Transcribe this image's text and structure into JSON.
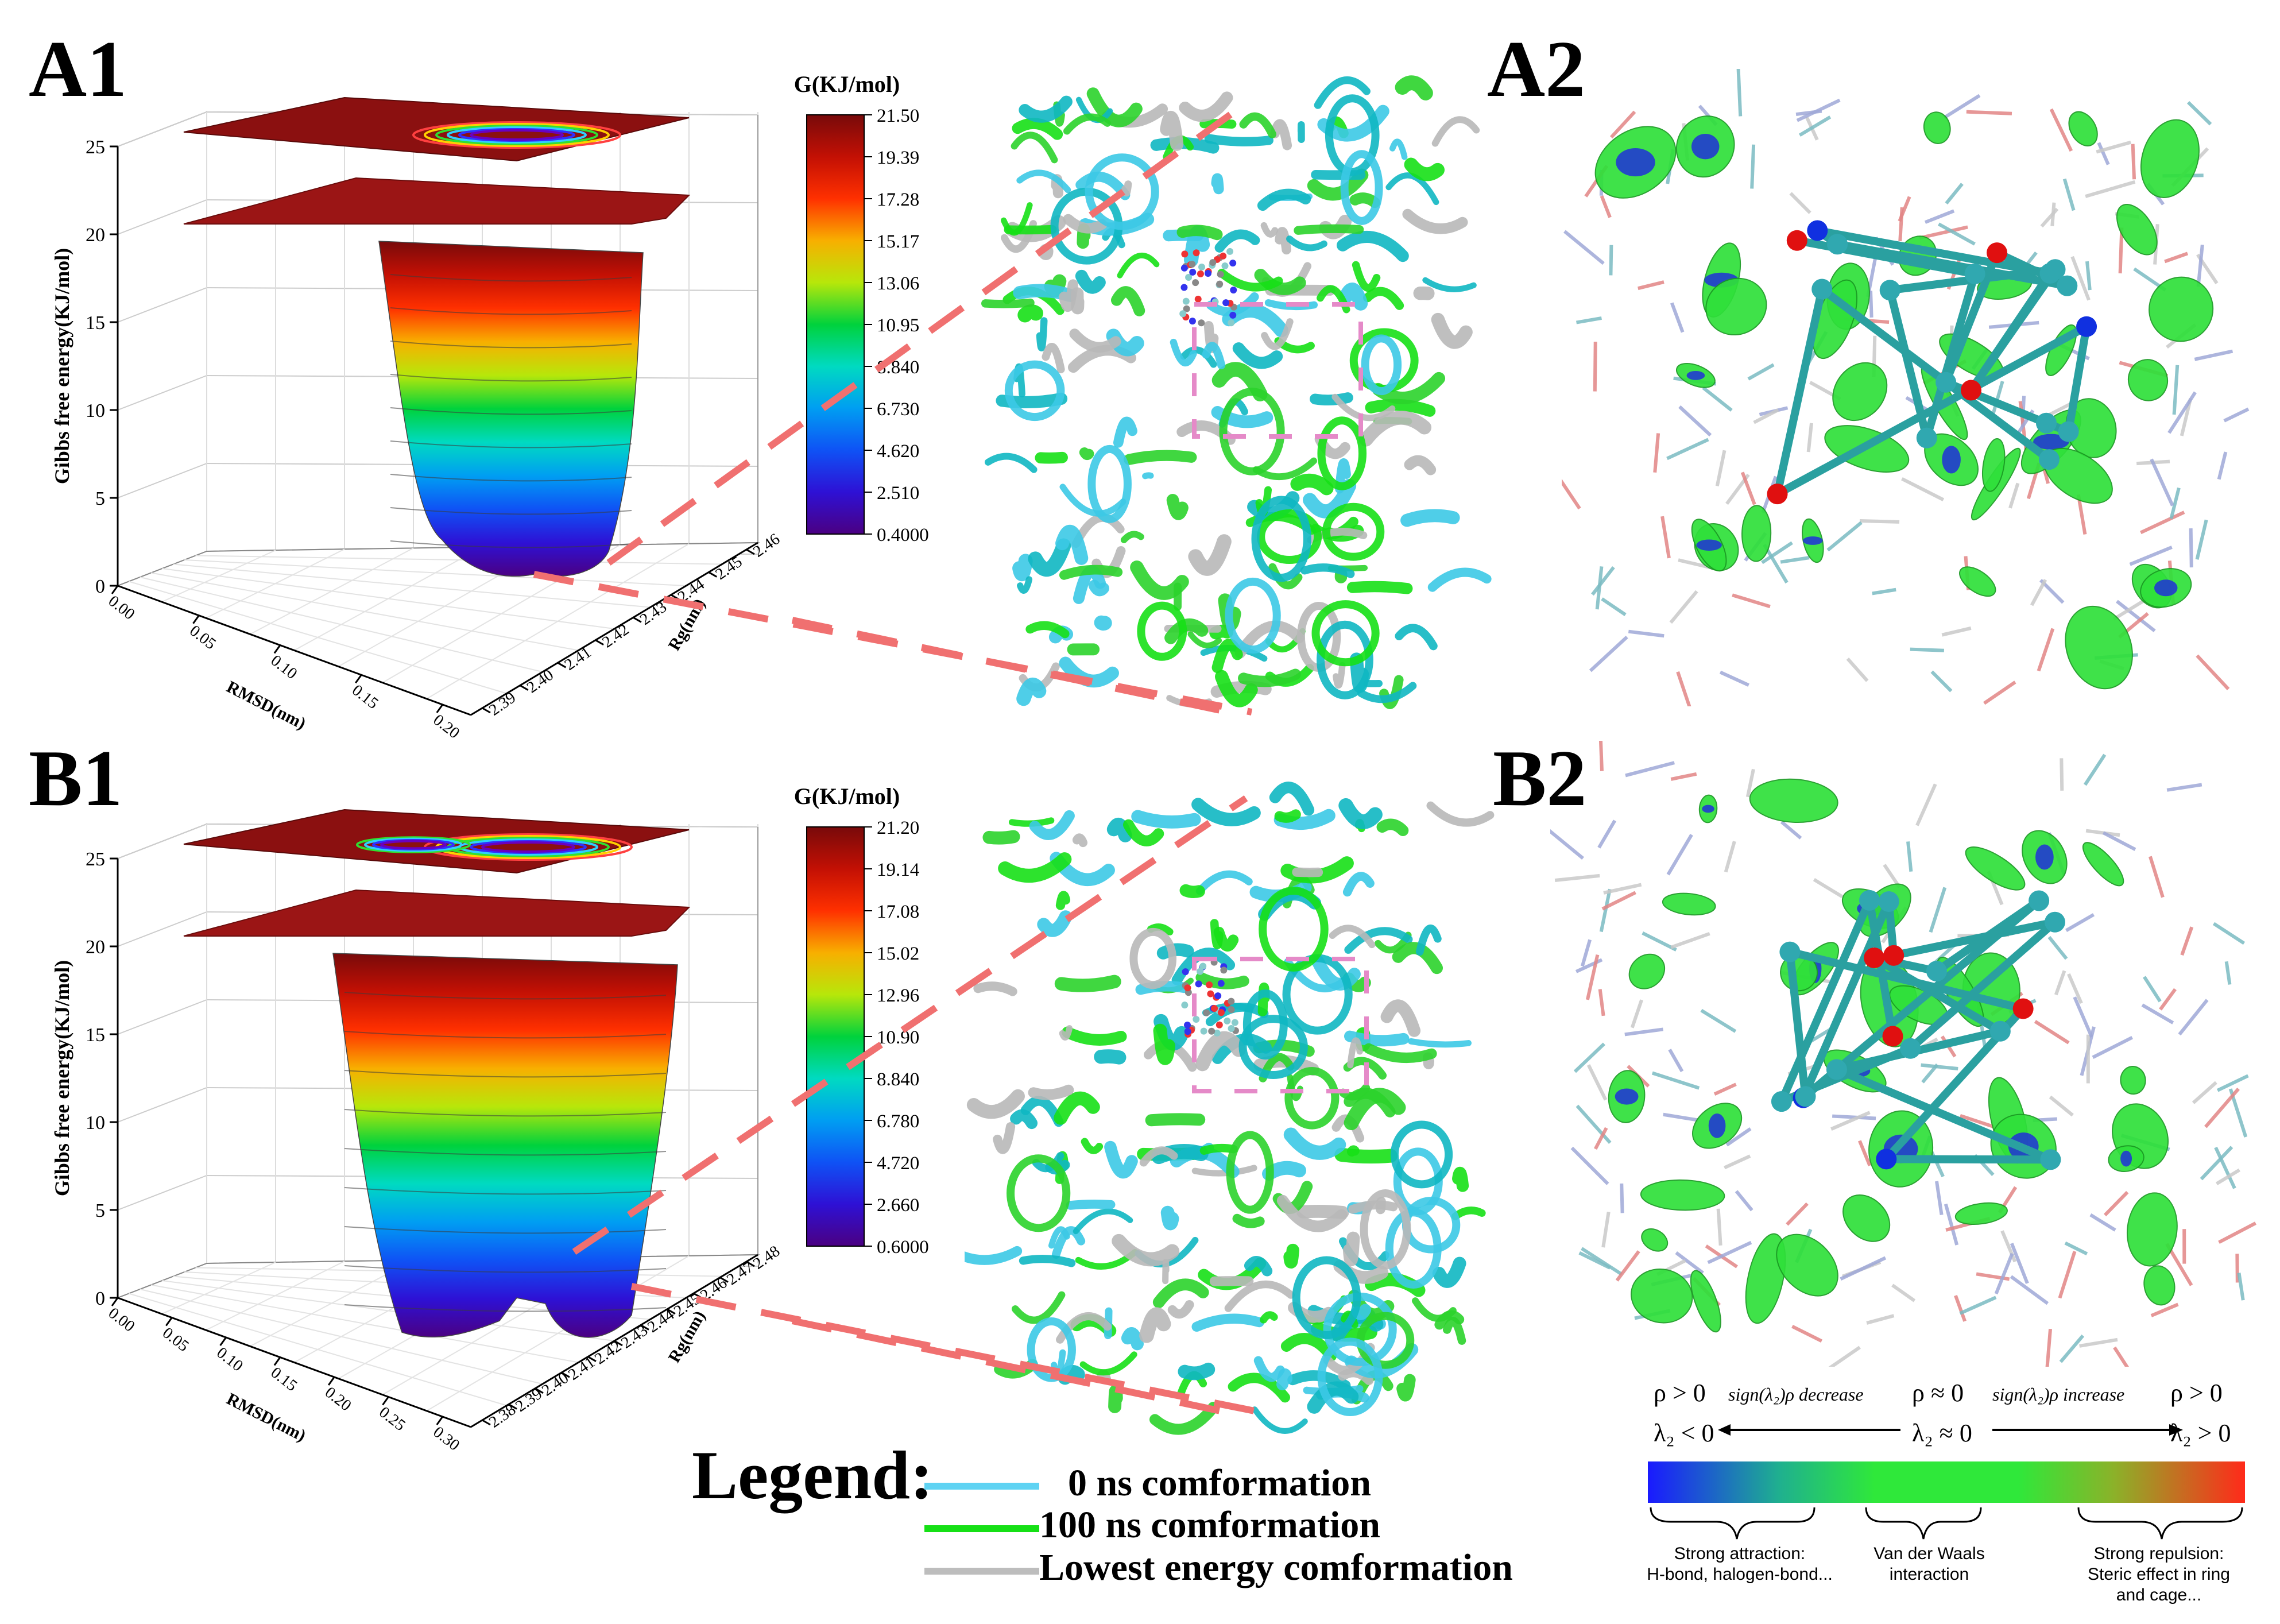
{
  "panels": {
    "a1": "A1",
    "a2": "A2",
    "b1": "B1",
    "b2": "B2"
  },
  "colors": {
    "conf_0ns": "#5fd3f3",
    "conf_100ns": "#16e016",
    "conf_lowest": "#bdbdbd",
    "zoom_line": "#f07070",
    "zoom_box": "#e58ac8"
  },
  "chart_data": [
    {
      "type": "surface",
      "panel": "A1",
      "zlabel": "Gibbs free energy(KJ/mol)",
      "xlabel": "RMSD(nm)",
      "ylabel": "Rg(nm)",
      "zlim": [
        0,
        25
      ],
      "z_ticks": [
        "0",
        "5",
        "10",
        "15",
        "20",
        "25"
      ],
      "x_ticks": [
        "0.00",
        "0.05",
        "0.10",
        "0.15",
        "0.20"
      ],
      "y_ticks": [
        "2.39",
        "2.40",
        "2.41",
        "2.42",
        "2.43",
        "2.44",
        "2.45",
        "2.46"
      ],
      "colorbar_title": "G(KJ/mol)",
      "colorbar_ticks": [
        "21.50",
        "19.39",
        "17.28",
        "15.17",
        "13.06",
        "10.95",
        "8.840",
        "6.730",
        "4.620",
        "2.510",
        "0.4000"
      ],
      "minima": 1
    },
    {
      "type": "surface",
      "panel": "B1",
      "zlabel": "Gibbs free energy(KJ/mol)",
      "xlabel": "RMSD(nm)",
      "ylabel": "Rg(nm)",
      "zlim": [
        0,
        25
      ],
      "z_ticks": [
        "0",
        "5",
        "10",
        "15",
        "20",
        "25"
      ],
      "x_ticks": [
        "0.00",
        "0.05",
        "0.10",
        "0.15",
        "0.20",
        "0.25",
        "0.30"
      ],
      "y_ticks": [
        "2.38",
        "2.39",
        "2.40",
        "2.41",
        "2.42",
        "2.43",
        "2.44",
        "2.45",
        "2.46",
        "2.47",
        "2.48"
      ],
      "colorbar_title": "G(KJ/mol)",
      "colorbar_ticks": [
        "21.20",
        "19.14",
        "17.08",
        "15.02",
        "12.96",
        "10.90",
        "8.840",
        "6.780",
        "4.720",
        "2.660",
        "0.6000"
      ],
      "minima": 2
    }
  ],
  "legend": {
    "title": "Legend:",
    "items": [
      "0 ns comformation",
      "100 ns comformation",
      "Lowest energy comformation"
    ]
  },
  "nci": {
    "left_top": "ρ > 0",
    "left_bottom": "λ₂ < 0",
    "mid_top": "ρ ≈ 0",
    "mid_bottom": "λ₂ ≈ 0",
    "right_top": "ρ > 0",
    "right_bottom": "λ₂ > 0",
    "decrease": "sign(λ₂)ρ decrease",
    "increase": "sign(λ₂)ρ increase",
    "cap_left": "Strong attraction:\nH-bond, halogen-bond...",
    "cap_mid": "Van der Waals\ninteraction",
    "cap_right": "Strong repulsion:\nSteric effect in ring\nand cage..."
  }
}
